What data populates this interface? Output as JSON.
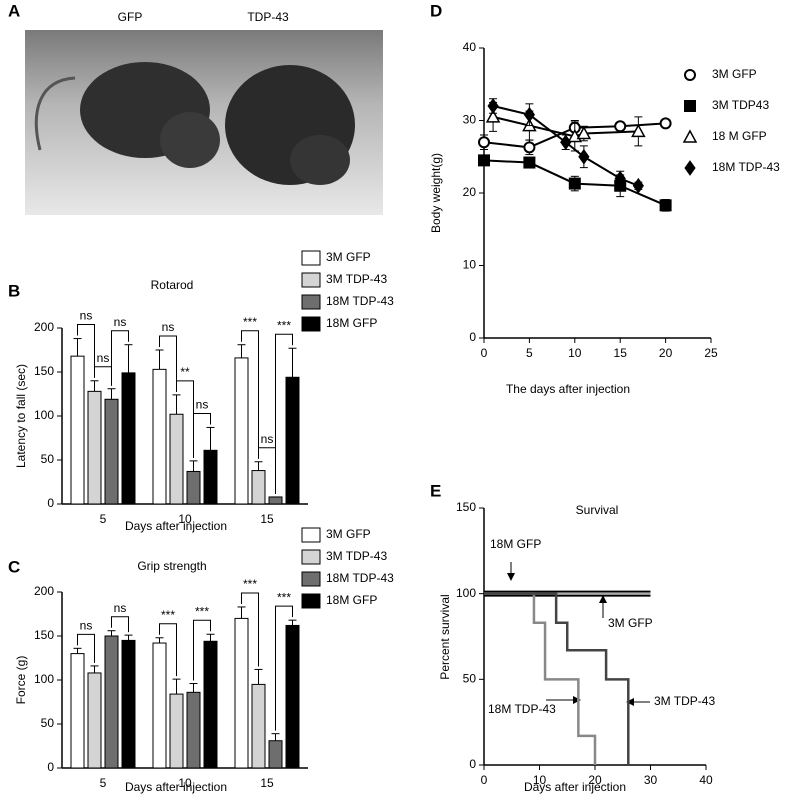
{
  "panel_a": {
    "letter": "A",
    "labels": [
      "GFP",
      "TDP-43"
    ]
  },
  "chart_data": [
    {
      "panel": "B",
      "type": "bar",
      "title": "Rotarod",
      "ylabel": "Latency to fall (sec)",
      "xlabel": "Days after injection",
      "categories": [
        "5",
        "10",
        "15"
      ],
      "ylim": [
        0,
        200
      ],
      "yticks": [
        0,
        50,
        100,
        150,
        200
      ],
      "series": [
        {
          "name": "3M GFP",
          "color": "#ffffff",
          "values": [
            168,
            153,
            166
          ],
          "errors": [
            20,
            22,
            15
          ]
        },
        {
          "name": "3M TDP-43",
          "color": "#d4d4d4",
          "values": [
            128,
            102,
            38
          ],
          "errors": [
            12,
            22,
            10
          ]
        },
        {
          "name": "18M TDP-43",
          "color": "#6e6e6e",
          "values": [
            119,
            37,
            8
          ],
          "errors": [
            12,
            12,
            0
          ]
        },
        {
          "name": "18M GFP",
          "color": "#000000",
          "values": [
            149,
            61,
            144
          ],
          "errors": [
            32,
            26,
            33
          ]
        }
      ],
      "annotations": [
        "ns",
        "ns",
        "ns",
        "ns",
        "**",
        "ns",
        "***",
        "ns",
        "***"
      ]
    },
    {
      "panel": "C",
      "type": "bar",
      "title": "Grip strength",
      "ylabel": "Force (g)",
      "xlabel": "Days after injection",
      "categories": [
        "5",
        "10",
        "15"
      ],
      "ylim": [
        0,
        200
      ],
      "yticks": [
        0,
        50,
        100,
        150,
        200
      ],
      "series": [
        {
          "name": "3M GFP",
          "color": "#ffffff",
          "values": [
            130,
            142,
            170
          ],
          "errors": [
            6,
            6,
            13
          ]
        },
        {
          "name": "3M TDP-43",
          "color": "#d4d4d4",
          "values": [
            108,
            84,
            95
          ],
          "errors": [
            8,
            17,
            17
          ]
        },
        {
          "name": "18M TDP-43",
          "color": "#6e6e6e",
          "values": [
            150,
            86,
            31
          ],
          "errors": [
            6,
            10,
            8
          ]
        },
        {
          "name": "18M GFP",
          "color": "#000000",
          "values": [
            145,
            144,
            162
          ],
          "errors": [
            6,
            8,
            6
          ]
        }
      ],
      "annotations": [
        "ns",
        "ns",
        "***",
        "***",
        "***",
        "***"
      ]
    },
    {
      "panel": "D",
      "type": "line",
      "ylabel": "Body weight(g)",
      "xlabel": "The days after injection",
      "xlim": [
        0,
        25
      ],
      "xticks": [
        0,
        5,
        10,
        15,
        20,
        25
      ],
      "ylim": [
        0,
        40
      ],
      "yticks": [
        0,
        10,
        20,
        30,
        40
      ],
      "series": [
        {
          "name": "3M GFP",
          "color": "#000000",
          "marker": "circle-open",
          "x": [
            0,
            5,
            10,
            15,
            20
          ],
          "values": [
            27,
            26.3,
            29,
            29.2,
            29.6
          ],
          "errors": [
            1,
            1,
            1,
            0.5,
            0.5
          ]
        },
        {
          "name": "3M TDP43",
          "color": "#000000",
          "marker": "square",
          "x": [
            0,
            5,
            10,
            15,
            20
          ],
          "values": [
            24.5,
            24.2,
            21.3,
            21,
            18.3
          ],
          "errors": [
            0.5,
            0.5,
            1,
            1.5,
            0.8
          ]
        },
        {
          "name": "18 M GFP",
          "color": "#000000",
          "marker": "triangle-open",
          "x": [
            1,
            5,
            10,
            11,
            17
          ],
          "values": [
            30.5,
            29.3,
            27.8,
            28.2,
            28.5
          ],
          "errors": [
            2,
            2,
            2,
            1,
            2
          ]
        },
        {
          "name": "18M TDP-43",
          "color": "#000000",
          "marker": "diamond",
          "x": [
            1,
            5,
            9,
            11,
            15,
            17
          ],
          "values": [
            32,
            30.8,
            27,
            25,
            22,
            21
          ],
          "errors": [
            1,
            1.5,
            1,
            1.5,
            1,
            0.5
          ]
        }
      ]
    },
    {
      "panel": "E",
      "type": "step",
      "title": "Survival",
      "ylabel": "Percent survival",
      "xlabel": "Days after injection",
      "xlim": [
        0,
        40
      ],
      "xticks": [
        0,
        10,
        20,
        30,
        40
      ],
      "ylim": [
        0,
        150
      ],
      "yticks": [
        0,
        50,
        100,
        150
      ],
      "series": [
        {
          "name": "18M GFP",
          "color": "#000000",
          "x": [
            0,
            30
          ],
          "values": [
            100,
            100
          ]
        },
        {
          "name": "3M GFP",
          "color": "#aaaaaa",
          "x": [
            0,
            30
          ],
          "values": [
            100,
            100
          ]
        },
        {
          "name": "18M TDP-43",
          "color": "#888888",
          "x": [
            0,
            9,
            11,
            17,
            20
          ],
          "values": [
            100,
            83,
            50,
            17,
            0
          ]
        },
        {
          "name": "3M TDP-43",
          "color": "#444444",
          "x": [
            0,
            13,
            15,
            22,
            26
          ],
          "values": [
            100,
            83,
            67,
            50,
            0
          ]
        }
      ]
    }
  ]
}
